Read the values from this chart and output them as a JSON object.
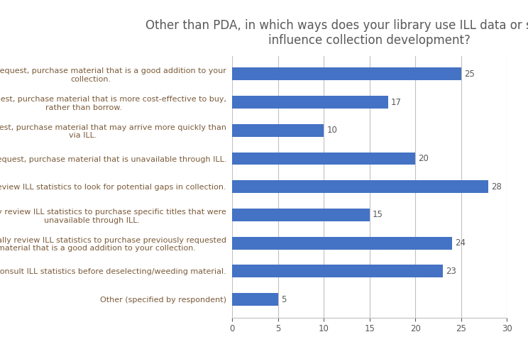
{
  "title": "Other than PDA, in which ways does your library use ILL data or statistics to\ninfluence collection development?",
  "categories": [
    "At time of request, purchase material that is a good addition to your\ncollection.",
    "At time of request, purchase material that is more cost-effective to buy,\nrather than borrow.",
    "At time of request, purchase material that may arrive more quickly than\nvia ILL.",
    "At time of request, purchase material that is unavailable through ILL.",
    "Periodically review ILL statistics to look for potential gaps in collection.",
    "Periodically review ILL statistics to purchase specific titles that were\nunavailable through ILL.",
    "Periodically review ILL statistics to purchase previously requested\nmaterial that is a good addition to your collection.",
    "Consult ILL statistics before deselecting/weeding material.",
    "Other (specified by respondent)"
  ],
  "values": [
    25,
    17,
    10,
    20,
    28,
    15,
    24,
    23,
    5
  ],
  "bar_color": "#4472C4",
  "title_color": "#595959",
  "label_color": "#7B5B3A",
  "value_color": "#595959",
  "background_color": "#FFFFFF",
  "xlim": [
    0,
    30
  ],
  "xticks": [
    0,
    5,
    10,
    15,
    20,
    25,
    30
  ],
  "title_fontsize": 12,
  "label_fontsize": 8.0,
  "value_fontsize": 8.5,
  "tick_fontsize": 8.5,
  "grid_color": "#C0C0C0",
  "bar_height": 0.45
}
